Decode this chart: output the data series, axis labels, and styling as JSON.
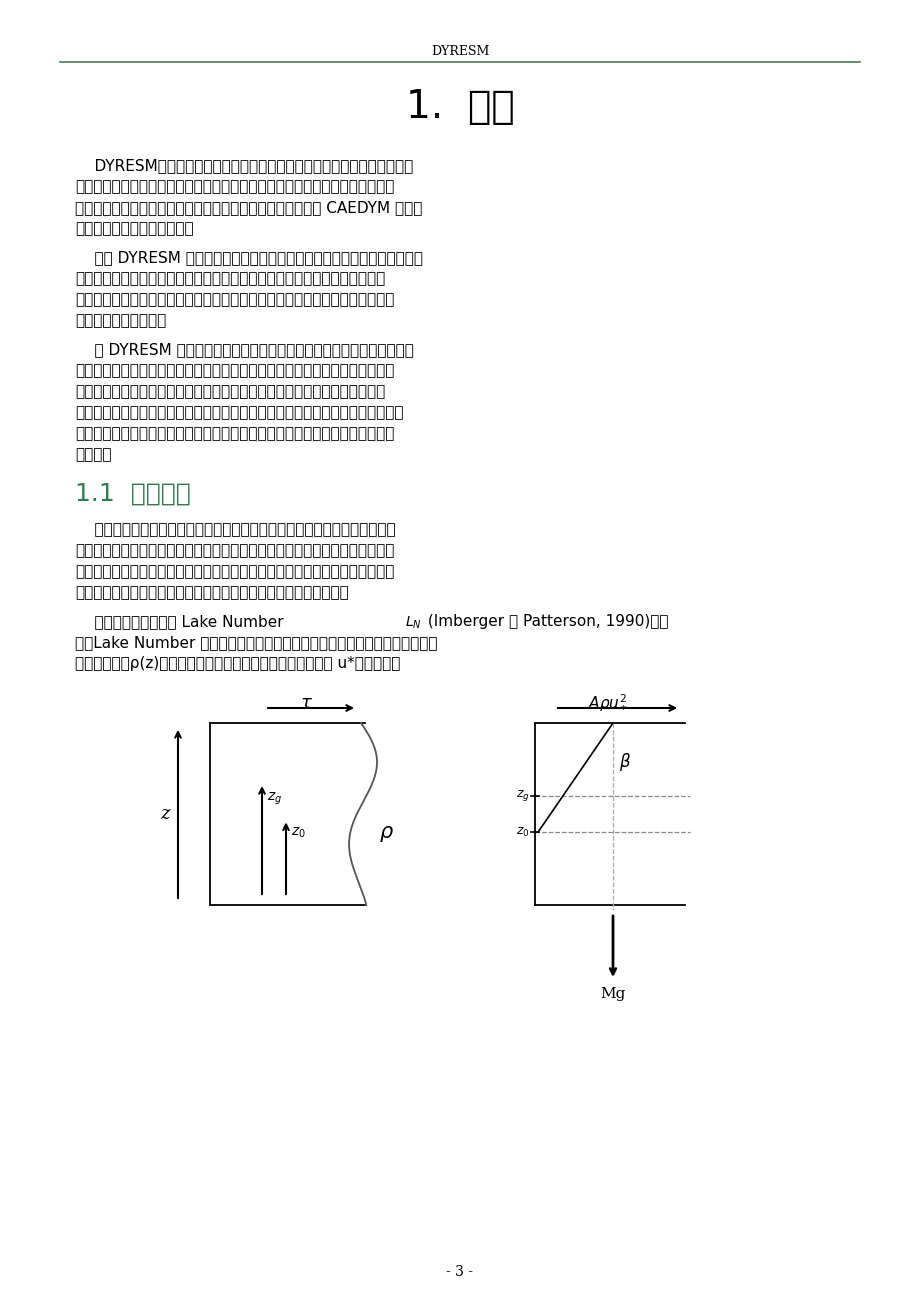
{
  "page_header": "DYRESM",
  "header_line_color": "#4a7c59",
  "title": "1.  引言",
  "title_fontsize": 28,
  "title_color": "#000000",
  "section_title": "1.1  一维假定",
  "section_title_color": "#2e7d52",
  "section_title_fontsize": 18,
  "body_fontsize": 11,
  "body_color": "#000000",
  "page_number": "- 3 -",
  "background_color": "#ffffff",
  "para1_lines": [
    "    DYRESM（水库动力学模拟模型）是一个面向湖泊和水库的一维水动力学",
    "模型，用来预测水体温度、盐度随水深和时间的变化。这些水动力学要素是基于",
    "过程的，而不是基于经验的，从而不需要标定。此模型构成了 CAEDYM 水质模",
    "型的一维水动力学驱动程序。"
  ],
  "para2_lines": [
    "    模型 DYRESM 是基于一个一维假定，那也就是说，垂向上的变化比水平方",
    "向上的变化起了更加重要的作用。这就引起了层状结构，即水库表现为一系列",
    "的水平分层。在这些分层中没有横向的和纵向的变化，任何属性的垂向分布图都",
    "从各层的属性值得到。"
  ],
  "para3_lines": [
    "    在 DYRESM 中这些分层具有不同的厚度：随着入流和出流进入和流出水",
    "库，受影响的分层扩张或紧缩，那些上面的分层向上或向下运动以适应体积的变",
    "化。由于这些分层的表面区域随着垂向位置的变化而变化以与水库的测深相一",
    "致，所以这些分层的垂向运动伴随着厚度的变化。混和用相邻分层的合并来模拟，",
    "并且分层的厚度被模型在内部动态调整以保证对于每一个过程，都能得到一个合",
    "适的解。"
  ],
  "para4_lines": [
    "    一维假定是基于对湖泊中经常有密度分层的观察，在这些湖泊中，垂向运动",
    "受到抑制，而水平方向上的密度变化却能够很快的被水平方向的平流和对流所削",
    "减。假设此一维模型适合于超过一天的时间尺度的模拟，则由微弱的温度梯度所",
    "产生的水平方向的交换在小于一天的时间尺度上被传播超过几公里。"
  ],
  "para5_line1_part1": "    一维假定的有效性用 Lake Number",
  "para5_line1_part2": " (Imberger 和 Patterson, 1990)来判",
  "para5_line2": "定。Lake Number 根据分层的稳定性和风的扰动的影响来进行定义，假设一个",
  "para5_line3": "具有任意分层ρ(z)的普通湖泊上作用着一个具有表面摩擦速度 u*的风速场："
}
